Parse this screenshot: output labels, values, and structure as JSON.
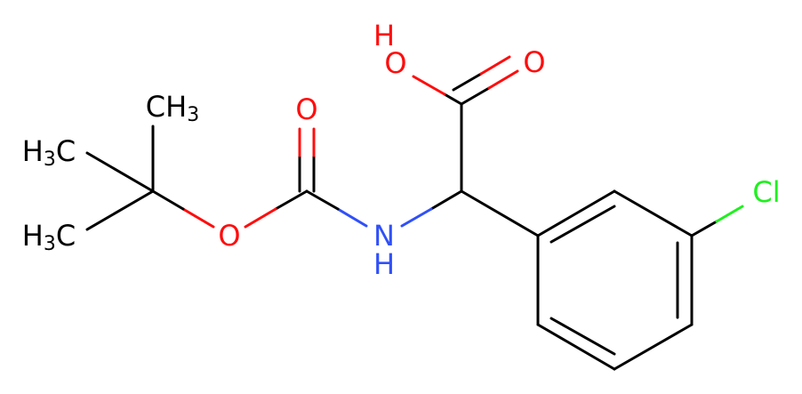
{
  "molecule": {
    "atoms": [
      {
        "parts": [
          "H"
        ]
      },
      {
        "parts": [
          "O"
        ]
      },
      {
        "parts": [
          "O"
        ]
      },
      {
        "parts": [
          "N"
        ]
      },
      {
        "parts": [
          "H"
        ]
      },
      {
        "parts": [
          "O"
        ]
      },
      {
        "parts": [
          "O"
        ]
      },
      {
        "parts": [
          "CH",
          "3"
        ]
      },
      {
        "parts": [
          "H",
          "3",
          "C"
        ]
      },
      {
        "parts": [
          "H",
          "3",
          "C"
        ]
      },
      {
        "parts": [
          "Cl"
        ]
      }
    ]
  }
}
